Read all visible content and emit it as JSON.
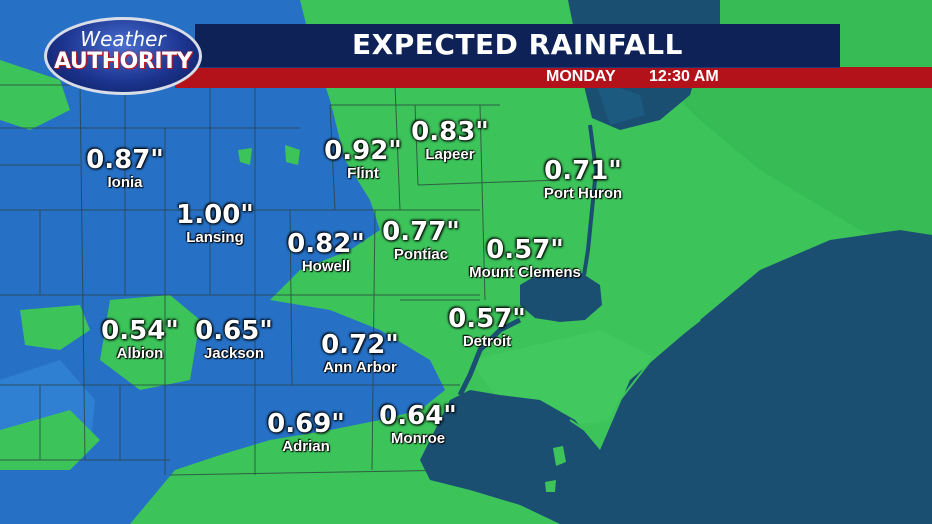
{
  "header": {
    "title": "EXPECTED RAINFALL",
    "day": "MONDAY",
    "time": "12:30 AM"
  },
  "logo": {
    "line1": "Weather",
    "line2": "AUTHORITY"
  },
  "colors": {
    "low_rain_green": "#3cc35a",
    "heavy_rain_blue": "#1f6fc4",
    "water": "#1b4f72",
    "banner_navy": "#0e2257",
    "banner_red": "#b3121b"
  },
  "cities": [
    {
      "name": "Ionia",
      "value": "0.87\""
    },
    {
      "name": "Flint",
      "value": "0.92\""
    },
    {
      "name": "Lapeer",
      "value": "0.83\""
    },
    {
      "name": "Port Huron",
      "value": "0.71\""
    },
    {
      "name": "Lansing",
      "value": "1.00\""
    },
    {
      "name": "Howell",
      "value": "0.82\""
    },
    {
      "name": "Pontiac",
      "value": "0.77\""
    },
    {
      "name": "Mount Clemens",
      "value": "0.57\""
    },
    {
      "name": "Albion",
      "value": "0.54\""
    },
    {
      "name": "Jackson",
      "value": "0.65\""
    },
    {
      "name": "Ann Arbor",
      "value": "0.72\""
    },
    {
      "name": "Detroit",
      "value": "0.57\""
    },
    {
      "name": "Adrian",
      "value": "0.69\""
    },
    {
      "name": "Monroe",
      "value": "0.64\""
    }
  ]
}
